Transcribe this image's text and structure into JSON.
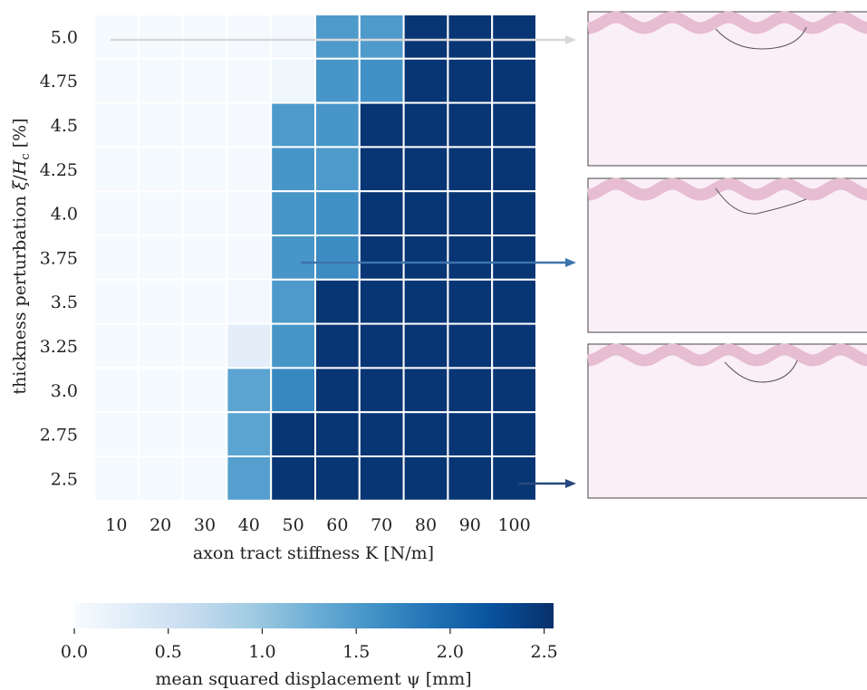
{
  "chart_data": [
    {
      "type": "heatmap",
      "xlabel": "axon tract stiffness K [N/m]",
      "ylabel": "thickness perturbation ξ/H_c [%]",
      "ylabel_parts": {
        "pre": "thickness perturbation ",
        "xi": "ξ",
        "slash": "/",
        "H": "H",
        "sub": "c",
        "post": " [%]"
      },
      "x_categories": [
        "10",
        "20",
        "30",
        "40",
        "50",
        "60",
        "70",
        "80",
        "90",
        "100"
      ],
      "y_categories": [
        "5.0",
        "4.75",
        "4.5",
        "4.25",
        "4.0",
        "3.75",
        "3.5",
        "3.25",
        "3.0",
        "2.75",
        "2.5"
      ],
      "values": [
        [
          0.02,
          0.02,
          0.02,
          0.03,
          0.05,
          1.5,
          1.5,
          2.5,
          2.5,
          2.5
        ],
        [
          0.02,
          0.02,
          0.02,
          0.03,
          0.1,
          1.55,
          1.6,
          2.5,
          2.5,
          2.5
        ],
        [
          0.02,
          0.02,
          0.02,
          0.03,
          1.5,
          1.55,
          2.5,
          2.5,
          2.5,
          2.5
        ],
        [
          0.02,
          0.02,
          0.02,
          0.03,
          1.55,
          1.5,
          2.5,
          2.5,
          2.5,
          2.5
        ],
        [
          0.02,
          0.02,
          0.02,
          0.03,
          1.55,
          1.6,
          2.5,
          2.5,
          2.5,
          2.5
        ],
        [
          0.02,
          0.02,
          0.02,
          0.03,
          1.55,
          1.65,
          2.5,
          2.5,
          2.5,
          2.5
        ],
        [
          0.02,
          0.02,
          0.02,
          0.06,
          1.5,
          2.5,
          2.5,
          2.5,
          2.5,
          2.5
        ],
        [
          0.02,
          0.02,
          0.02,
          0.25,
          1.55,
          2.5,
          2.5,
          2.5,
          2.5,
          2.5
        ],
        [
          0.02,
          0.02,
          0.02,
          1.4,
          1.7,
          2.5,
          2.5,
          2.5,
          2.5,
          2.5
        ],
        [
          0.02,
          0.02,
          0.02,
          1.4,
          2.5,
          2.5,
          2.5,
          2.5,
          2.5,
          2.5
        ],
        [
          0.02,
          0.02,
          0.04,
          1.45,
          2.5,
          2.5,
          2.5,
          2.5,
          2.5,
          2.5
        ]
      ],
      "colorscale": "Blues",
      "vmin": 0,
      "vmax": 2.55
    },
    {
      "type": "colorbar",
      "label": "mean squared displacement ψ [mm]",
      "ticks": [
        "0.0",
        "0.5",
        "1.0",
        "1.5",
        "2.0",
        "2.5"
      ],
      "tick_values": [
        0,
        0.5,
        1.0,
        1.5,
        2.0,
        2.5
      ],
      "range": [
        0,
        2.55
      ]
    }
  ],
  "arrows": [
    {
      "row": "5.0",
      "from_col": "10",
      "color": "#d8d8d8"
    },
    {
      "row": "3.75",
      "from_col": "50",
      "color": "#3d74ad"
    },
    {
      "row": "2.5",
      "from_col": "100",
      "color": "#27487f"
    }
  ],
  "colors": {
    "panel_fill": "#fbeff7",
    "wave_band": "#e6bdd1",
    "panel_border": "#444444"
  }
}
